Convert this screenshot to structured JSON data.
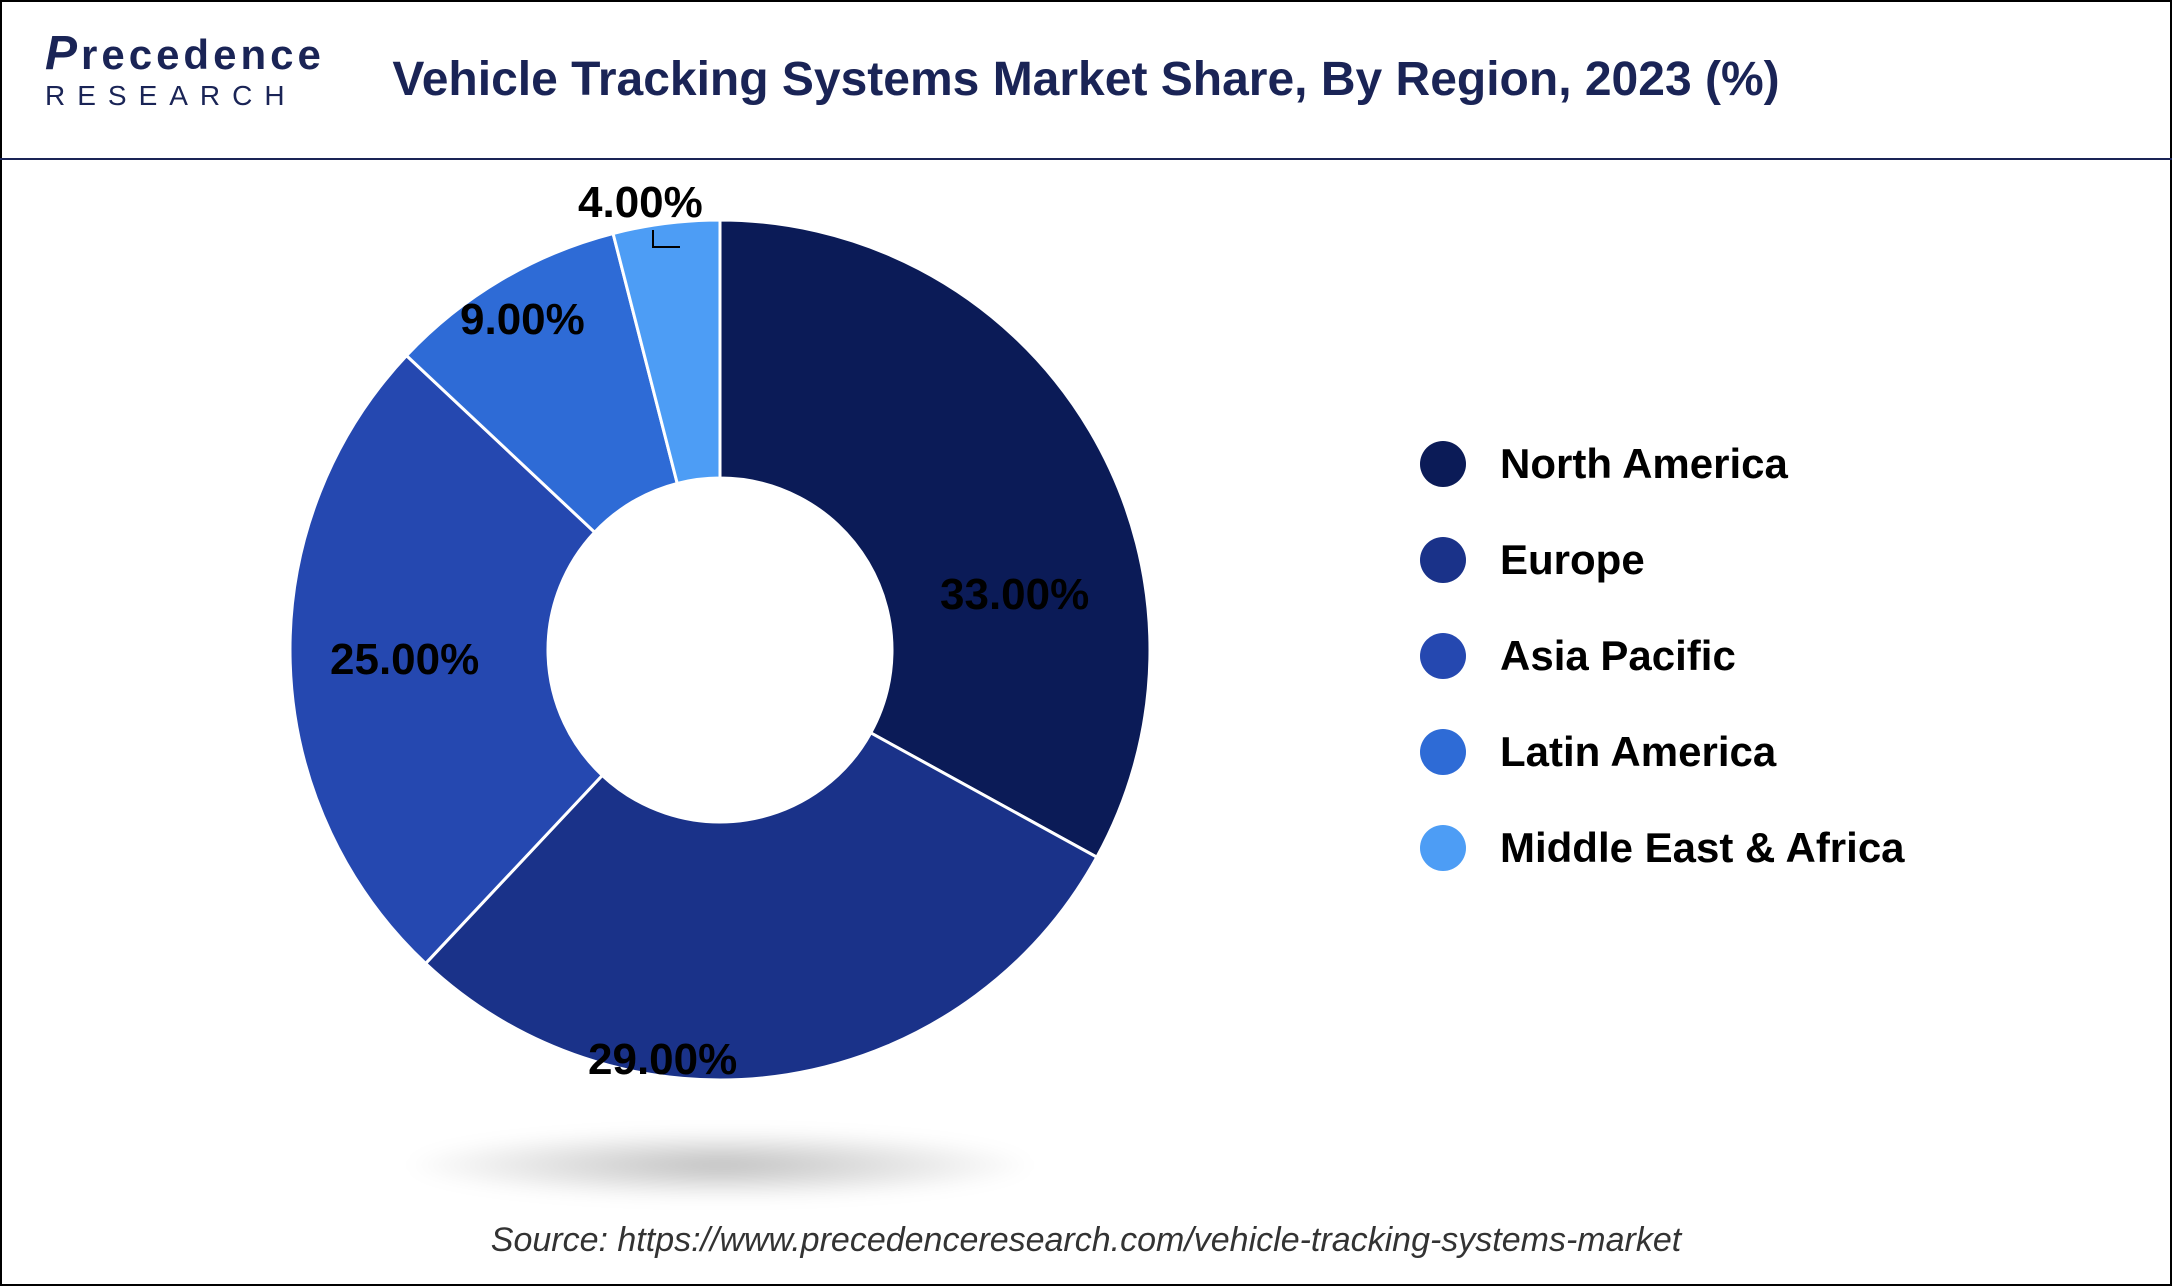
{
  "logo": {
    "top": "recedence",
    "top_prefix": "P",
    "bottom": "RESEARCH"
  },
  "title": "Vehicle Tracking Systems Market Share, By Region, 2023 (%)",
  "chart": {
    "type": "donut",
    "inner_radius_ratio": 0.4,
    "background_color": "#ffffff",
    "label_fontsize": 44,
    "label_color": "#000000",
    "legend_fontsize": 42,
    "slices": [
      {
        "label": "North America",
        "value": 33.0,
        "color": "#0b1b57",
        "display": "33.00%"
      },
      {
        "label": "Europe",
        "value": 29.0,
        "color": "#1a3289",
        "display": "29.00%"
      },
      {
        "label": "Asia Pacific",
        "value": 25.0,
        "color": "#2548b0",
        "display": "25.00%"
      },
      {
        "label": "Latin America",
        "value": 9.0,
        "color": "#2e6bd6",
        "display": "9.00%"
      },
      {
        "label": "Middle East & Africa",
        "value": 4.0,
        "color": "#4d9df5",
        "display": "4.00%"
      }
    ]
  },
  "source_text": "Source: https://www.precedenceresearch.com/vehicle-tracking-systems-market"
}
